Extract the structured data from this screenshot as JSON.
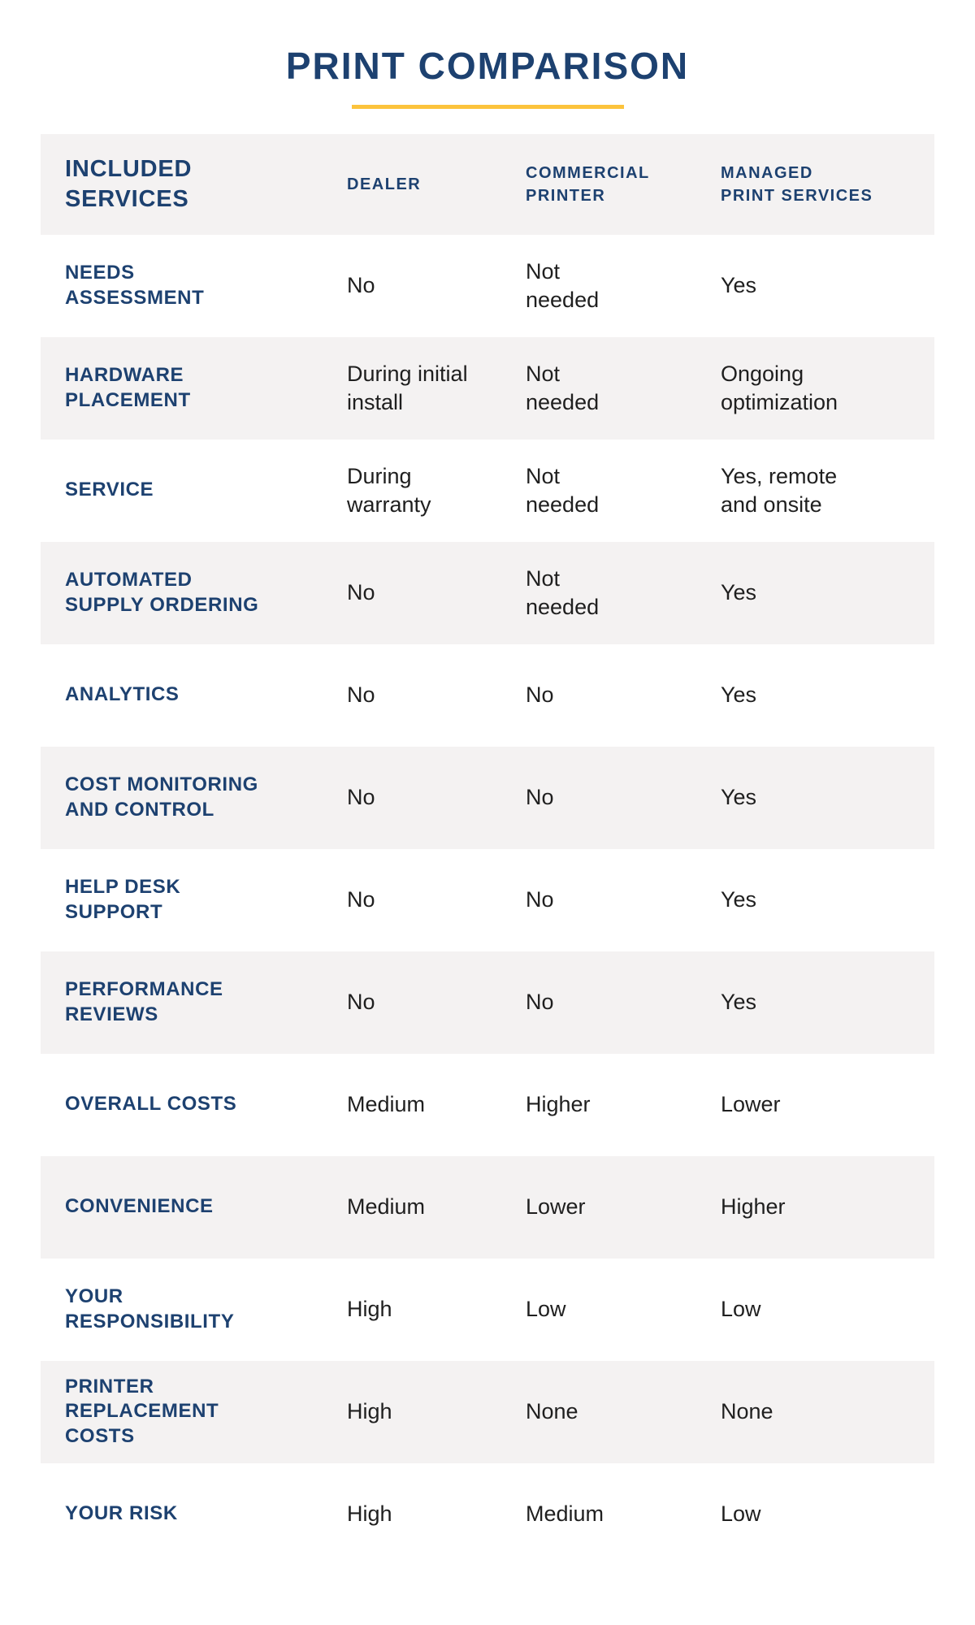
{
  "page": {
    "title": "PRINT COMPARISON"
  },
  "colors": {
    "navy": "#1d4170",
    "gold_accent": "#FCC33C",
    "row_stripe_gray": "#F4F2F2",
    "value_text": "#1F1F1F",
    "background": "#FFFFFF"
  },
  "table": {
    "headers": {
      "services": "INCLUDED\nSERVICES",
      "dealer": "DEALER",
      "commercial": "COMMERCIAL\nPRINTER",
      "managed": "MANAGED\nPRINT SERVICES"
    },
    "rows": [
      {
        "label": "NEEDS\nASSESSMENT",
        "dealer": "No",
        "commercial": "Not\nneeded",
        "managed": "Yes"
      },
      {
        "label": "HARDWARE\nPLACEMENT",
        "dealer": "During initial\ninstall",
        "commercial": "Not\nneeded",
        "managed": "Ongoing\noptimization"
      },
      {
        "label": "SERVICE",
        "dealer": "During\nwarranty",
        "commercial": "Not\nneeded",
        "managed": "Yes, remote\nand onsite"
      },
      {
        "label": "AUTOMATED\nSUPPLY ORDERING",
        "dealer": "No",
        "commercial": "Not\nneeded",
        "managed": "Yes"
      },
      {
        "label": "ANALYTICS",
        "dealer": "No",
        "commercial": "No",
        "managed": "Yes"
      },
      {
        "label": "COST MONITORING\nAND CONTROL",
        "dealer": "No",
        "commercial": "No",
        "managed": "Yes"
      },
      {
        "label": "HELP DESK\nSUPPORT",
        "dealer": "No",
        "commercial": "No",
        "managed": "Yes"
      },
      {
        "label": "PERFORMANCE\nREVIEWS",
        "dealer": "No",
        "commercial": "No",
        "managed": "Yes"
      },
      {
        "label": "OVERALL COSTS",
        "dealer": "Medium",
        "commercial": "Higher",
        "managed": "Lower"
      },
      {
        "label": "CONVENIENCE",
        "dealer": "Medium",
        "commercial": "Lower",
        "managed": "Higher"
      },
      {
        "label": "YOUR\nRESPONSIBILITY",
        "dealer": "High",
        "commercial": "Low",
        "managed": "Low"
      },
      {
        "label": "PRINTER\nREPLACEMENT\nCOSTS",
        "dealer": "High",
        "commercial": "None",
        "managed": "None"
      },
      {
        "label": "YOUR RISK",
        "dealer": "High",
        "commercial": "Medium",
        "managed": "Low"
      }
    ]
  },
  "chart_data": {
    "type": "table",
    "title": "PRINT COMPARISON",
    "columns": [
      "INCLUDED SERVICES",
      "DEALER",
      "COMMERCIAL PRINTER",
      "MANAGED PRINT SERVICES"
    ],
    "rows": [
      [
        "NEEDS ASSESSMENT",
        "No",
        "Not needed",
        "Yes"
      ],
      [
        "HARDWARE PLACEMENT",
        "During initial install",
        "Not needed",
        "Ongoing optimization"
      ],
      [
        "SERVICE",
        "During warranty",
        "Not needed",
        "Yes, remote and onsite"
      ],
      [
        "AUTOMATED SUPPLY ORDERING",
        "No",
        "Not needed",
        "Yes"
      ],
      [
        "ANALYTICS",
        "No",
        "No",
        "Yes"
      ],
      [
        "COST MONITORING AND CONTROL",
        "No",
        "No",
        "Yes"
      ],
      [
        "HELP DESK SUPPORT",
        "No",
        "No",
        "Yes"
      ],
      [
        "PERFORMANCE REVIEWS",
        "No",
        "No",
        "Yes"
      ],
      [
        "OVERALL COSTS",
        "Medium",
        "Higher",
        "Lower"
      ],
      [
        "CONVENIENCE",
        "Medium",
        "Lower",
        "Higher"
      ],
      [
        "YOUR RESPONSIBILITY",
        "High",
        "Low",
        "Low"
      ],
      [
        "PRINTER REPLACEMENT COSTS",
        "High",
        "None",
        "None"
      ],
      [
        "YOUR RISK",
        "High",
        "Medium",
        "Low"
      ]
    ],
    "layout": {
      "row_striping": true,
      "stripe_color": "#F4F2F2",
      "header_background": "#F4F2F2",
      "grid": false
    }
  }
}
